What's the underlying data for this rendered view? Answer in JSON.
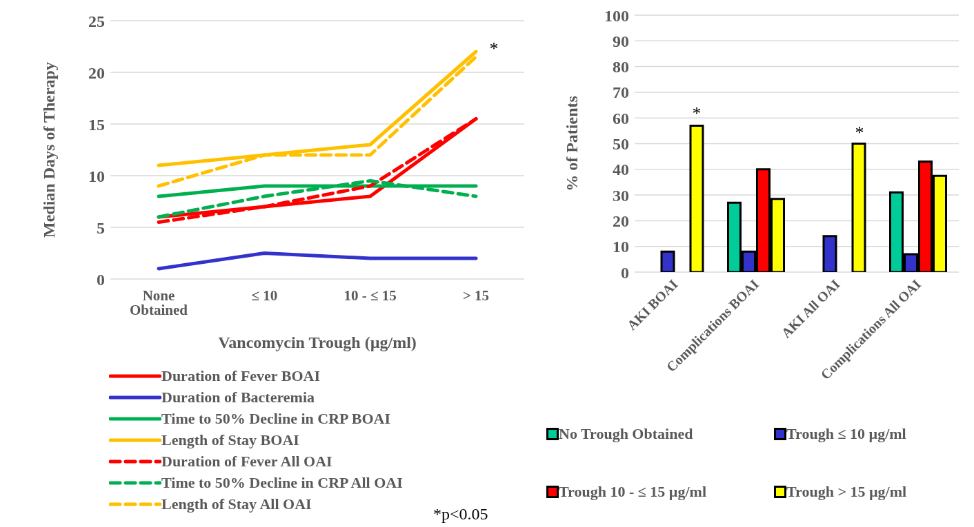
{
  "chart_data": [
    {
      "type": "line",
      "ylabel": "Median Days of Therapy",
      "xlabel": "Vancomycin Trough (µg/ml)",
      "categories": [
        "None Obtained",
        "≤ 10",
        "10 - ≤ 15",
        "> 15"
      ],
      "ylim": [
        0,
        25
      ],
      "yticks": [
        0,
        5,
        10,
        15,
        20,
        25
      ],
      "grid": "y",
      "legend": "bottom",
      "marker": "none",
      "series": [
        {
          "name": "Duration of Fever BOAI",
          "color": "#ff0000",
          "line_style": "solid",
          "values": [
            6,
            7,
            8,
            15.5
          ]
        },
        {
          "name": "Duration of Bacteremia",
          "color": "#3333cc",
          "line_style": "solid",
          "values": [
            1,
            2.5,
            2,
            2
          ]
        },
        {
          "name": "Time to 50% Decline in CRP BOAI",
          "color": "#00b050",
          "line_style": "solid",
          "values": [
            8,
            9,
            9,
            9
          ]
        },
        {
          "name": "Length of Stay BOAI",
          "color": "#ffc000",
          "line_style": "solid",
          "values": [
            11,
            12,
            13,
            22
          ]
        },
        {
          "name": "Duration of Fever All OAI",
          "color": "#ff0000",
          "line_style": "dashed",
          "values": [
            5.5,
            7,
            9,
            15.5
          ]
        },
        {
          "name": "Time to 50% Decline in CRP All OAI",
          "color": "#00b050",
          "line_style": "dashed",
          "values": [
            6,
            8,
            9.5,
            8
          ]
        },
        {
          "name": "Length of Stay All OAI",
          "color": "#ffc000",
          "line_style": "dashed",
          "values": [
            9,
            12,
            12,
            21.5
          ]
        }
      ],
      "annotations": [
        {
          "text": "*",
          "x": "> 15",
          "y": 22
        },
        "*p<0.05"
      ]
    },
    {
      "type": "bar",
      "ylabel": "% of Patients",
      "categories": [
        "AKI BOAI",
        "Complications BOAI",
        "AKI All OAI",
        "Complications All OAI"
      ],
      "ylim": [
        0,
        100
      ],
      "yticks": [
        0,
        10,
        20,
        30,
        40,
        50,
        60,
        70,
        80,
        90,
        100
      ],
      "grid": "y",
      "legend": "bottom",
      "series": [
        {
          "name": "No Trough Obtained",
          "color": "#00cc99",
          "values": [
            0,
            27,
            0,
            31
          ]
        },
        {
          "name": "Trough ≤ 10 µg/ml",
          "color": "#3333cc",
          "values": [
            8,
            8,
            14,
            7
          ]
        },
        {
          "name": "Trough 10 - ≤ 15 µg/ml",
          "color": "#ff0000",
          "values": [
            0,
            40,
            0,
            43
          ]
        },
        {
          "name": "Trough > 15 µg/ml",
          "color": "#ffff00",
          "values": [
            57,
            28.5,
            50,
            37.5
          ]
        }
      ],
      "annotations": [
        "*",
        "*"
      ]
    }
  ]
}
